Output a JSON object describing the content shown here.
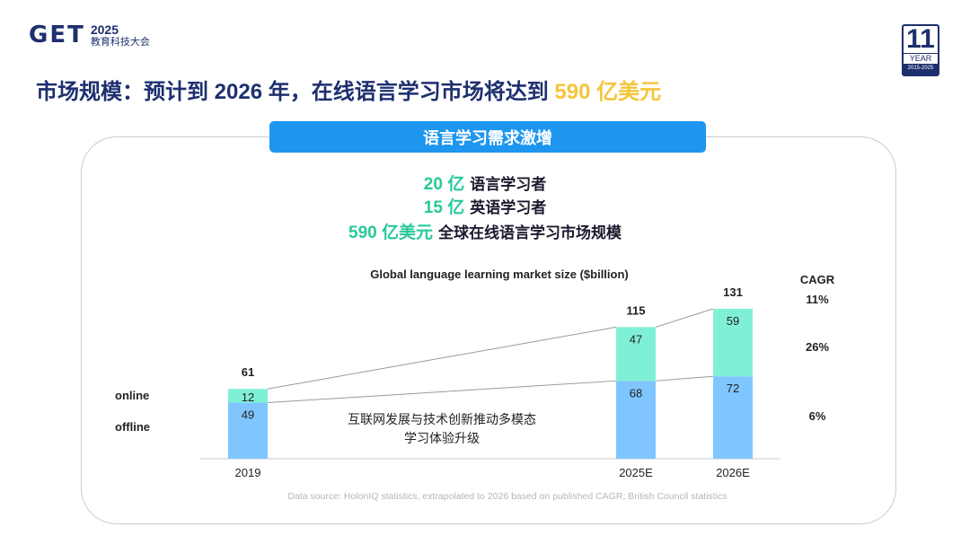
{
  "logo": {
    "mark": "GET",
    "year": "2025",
    "subtitle": "教育科技大会"
  },
  "badge": {
    "number": "11",
    "word": "YEAR",
    "range": "2015-2025"
  },
  "headline": {
    "prefix": "市场规模：预计到 2026 年，在线语言学习市场将达到 ",
    "highlight": "590 亿美元"
  },
  "banner": {
    "label": "语言学习需求激增"
  },
  "stats": [
    {
      "num": "20 亿",
      "text": "语言学习者"
    },
    {
      "num": "15 亿",
      "text": "英语学习者"
    },
    {
      "num": "590 亿美元",
      "text": "全球在线语言学习市场规模"
    }
  ],
  "colors": {
    "navy": "#1d2f6f",
    "gold": "#f5c53c",
    "banner": "#1e96f0",
    "online": "#7ff0d6",
    "offline": "#7fc6ff",
    "stat_green": "#27c99a"
  },
  "chart_data": {
    "type": "bar",
    "stacked": true,
    "title": "Global language learning market size ($billion)",
    "categories": [
      "2019",
      "2025E",
      "2026E"
    ],
    "series": [
      {
        "name": "offline",
        "values": [
          49,
          68,
          72
        ]
      },
      {
        "name": "online",
        "values": [
          12,
          47,
          59
        ]
      }
    ],
    "totals": [
      61,
      115,
      131
    ],
    "cagr": {
      "header": "CAGR",
      "total": "11%",
      "online": "26%",
      "offline": "6%"
    },
    "annotation": [
      "互联网发展与技术创新推动多模态",
      "学习体验升级"
    ],
    "source": "Data source:  HolonIQ statistics, extrapolated to 2026 based on published CAGR; British Council statistics",
    "ylim": [
      0,
      131
    ]
  }
}
